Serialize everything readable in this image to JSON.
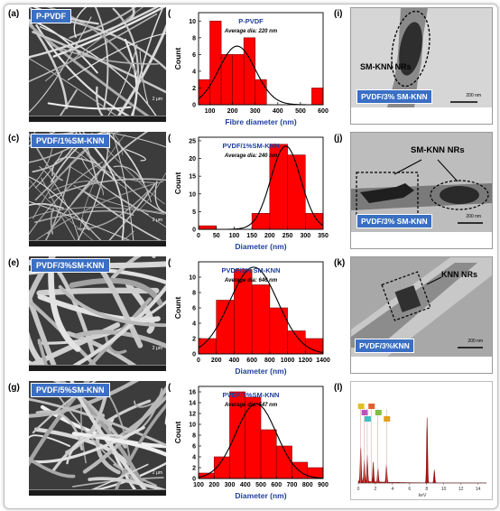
{
  "panels": {
    "a": "(a)",
    "b": "(b)",
    "c": "(c)",
    "d": "(d)",
    "e": "(e)",
    "f": "(f)",
    "g": "(g)",
    "h": "(h)",
    "i": "(i)",
    "j": "(j)",
    "k": "(k)",
    "l": "(l)"
  },
  "sem": {
    "a_badge": "P-PVDF",
    "c_badge": "PVDF/1%SM-KNN",
    "e_badge": "PVDF/3%SM-KNN",
    "g_badge": "PVDF/5%SM-KNN",
    "a_scale": "2 μm",
    "c_scale": "2 μm",
    "e_scale": "2 μm",
    "g_scale": "2 μm"
  },
  "tem": {
    "i_label": "SM-KNN NRs",
    "i_badge": "PVDF/3% SM-KNN",
    "i_scale": "200 nm",
    "j_label": "SM-KNN NRs",
    "j_badge": "PVDF/3% SM-KNN",
    "j_scale": "200 nm",
    "k_label": "KNN NRs",
    "k_badge": "PVDF/3%KNN",
    "k_scale": "200 nm",
    "l_xlabel": "keV"
  },
  "chart_data": [
    {
      "type": "bar",
      "panel": "b",
      "title": "P-PVDF",
      "annotation": "Average dia: 220 nm",
      "xlabel": "Fibre diameter (nm)",
      "ylabel": "Count",
      "x": [
        75,
        125,
        175,
        225,
        275,
        325,
        575
      ],
      "values": [
        3,
        10,
        6,
        6,
        8,
        3,
        2
      ],
      "bin_width": 50,
      "xlim": [
        50,
        600
      ],
      "ylim": [
        0,
        11
      ],
      "xticks": [
        100,
        200,
        300,
        400,
        500,
        600
      ],
      "yticks": [
        0,
        2,
        4,
        6,
        8,
        10
      ],
      "fit_curve": {
        "type": "gaussian",
        "center": 220,
        "sigma": 80,
        "peak": 7.0
      }
    },
    {
      "type": "bar",
      "panel": "d",
      "title": "PVDF/1%SM-KNN",
      "annotation": "Average dia: 240 nm",
      "xlabel": "Diameter (nm)",
      "ylabel": "Count",
      "x": [
        25,
        175,
        225,
        275,
        325
      ],
      "values": [
        1,
        4.5,
        24,
        21,
        4.5
      ],
      "bin_width": 50,
      "xlim": [
        0,
        350
      ],
      "ylim": [
        0,
        26
      ],
      "xticks": [
        0,
        50,
        100,
        150,
        200,
        250,
        300,
        350
      ],
      "yticks": [
        0,
        5,
        10,
        15,
        20,
        25
      ],
      "fit_curve": {
        "type": "gaussian",
        "center": 245,
        "sigma": 42,
        "peak": 23.5
      }
    },
    {
      "type": "bar",
      "panel": "f",
      "title": "PVDF/3% SM-KNN",
      "annotation": "Average dia: 646 nm",
      "xlabel": "Diameter (nm)",
      "ylabel": "Count",
      "x": [
        100,
        300,
        500,
        700,
        900,
        1100,
        1300
      ],
      "values": [
        2,
        7,
        11,
        9,
        6,
        3,
        2
      ],
      "bin_width": 200,
      "xlim": [
        0,
        1400
      ],
      "ylim": [
        0,
        12
      ],
      "xticks": [
        0,
        200,
        400,
        600,
        800,
        1000,
        1200,
        1400
      ],
      "yticks": [
        0,
        2,
        4,
        6,
        8,
        10
      ],
      "fit_curve": {
        "type": "gaussian",
        "center": 620,
        "sigma": 270,
        "peak": 11.3
      }
    },
    {
      "type": "bar",
      "panel": "h",
      "title": "PVDF/5%SM-KNN",
      "annotation": "Average dia: 547 nm",
      "xlabel": "Diameter (nm)",
      "ylabel": "Count",
      "x": [
        150,
        250,
        350,
        450,
        550,
        650,
        750,
        850
      ],
      "values": [
        1,
        4,
        16,
        15,
        9,
        6,
        3,
        2
      ],
      "bin_width": 100,
      "xlim": [
        100,
        900
      ],
      "ylim": [
        0,
        17
      ],
      "xticks": [
        100,
        200,
        300,
        400,
        500,
        600,
        700,
        800,
        900
      ],
      "yticks": [
        0,
        2,
        4,
        6,
        8,
        10,
        12,
        14,
        16
      ],
      "fit_curve": {
        "type": "gaussian",
        "center": 470,
        "sigma": 130,
        "peak": 13.8
      }
    },
    {
      "type": "bar",
      "panel": "l",
      "title": "",
      "xlabel": "keV",
      "xticks": [
        0,
        2,
        4,
        6,
        8,
        10,
        12,
        14
      ],
      "xlim": [
        0,
        15
      ],
      "peaks": [
        {
          "x": 0.28,
          "h": 0.55
        },
        {
          "x": 0.7,
          "h": 0.32
        },
        {
          "x": 1.05,
          "h": 0.4
        },
        {
          "x": 1.75,
          "h": 0.3
        },
        {
          "x": 2.3,
          "h": 0.22
        },
        {
          "x": 3.3,
          "h": 0.28
        },
        {
          "x": 8.05,
          "h": 1.0
        },
        {
          "x": 8.9,
          "h": 0.2
        }
      ],
      "markers": [
        {
          "x": 0.28,
          "color": "#e0c020"
        },
        {
          "x": 0.7,
          "color": "#c050c0"
        },
        {
          "x": 1.05,
          "color": "#40c0c0"
        },
        {
          "x": 1.5,
          "color": "#e06030"
        },
        {
          "x": 2.3,
          "color": "#80c040"
        },
        {
          "x": 3.3,
          "color": "#e0a020"
        }
      ]
    }
  ]
}
